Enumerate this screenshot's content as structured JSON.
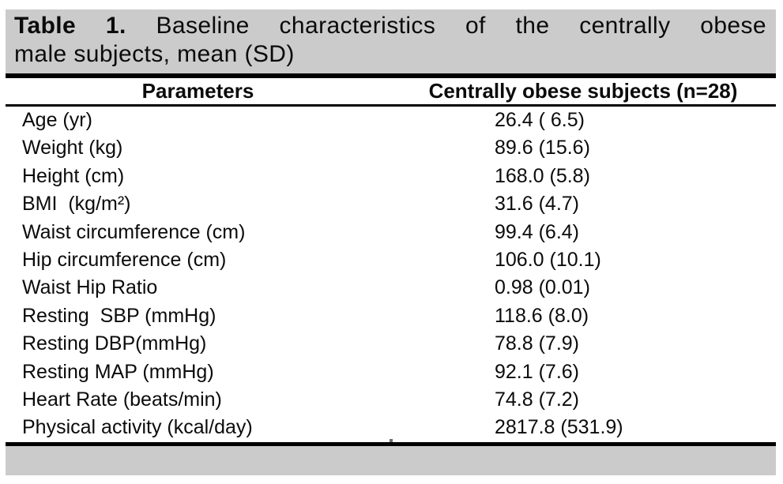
{
  "table": {
    "caption": {
      "label": "Table 1.",
      "text_line1": "Baseline characteristics  of the centrally obese",
      "text_line2": "male subjects, mean (SD)"
    },
    "header": {
      "parameters": "Parameters",
      "subjects": "Centrally obese subjects (n=28)"
    },
    "rows": [
      {
        "parameter": "Age (yr)",
        "value": "26.4 ( 6.5)"
      },
      {
        "parameter": "Weight (kg)",
        "value": "89.6 (15.6)"
      },
      {
        "parameter": "Height (cm)",
        "value": "168.0 (5.8)"
      },
      {
        "parameter": "BMI  (kg/m²)",
        "value": "31.6 (4.7)"
      },
      {
        "parameter": "Waist circumference (cm)",
        "value": "99.4 (6.4)"
      },
      {
        "parameter": "Hip circumference (cm)",
        "value": "106.0 (10.1)"
      },
      {
        "parameter": "Waist Hip Ratio",
        "value": "0.98 (0.01)"
      },
      {
        "parameter": "Resting  SBP (mmHg)",
        "value": "118.6 (8.0)"
      },
      {
        "parameter": "Resting DBP(mmHg)",
        "value": "78.8 (7.9)"
      },
      {
        "parameter": "Resting MAP (mmHg)",
        "value": "92.1 (7.6)"
      },
      {
        "parameter": "Heart Rate (beats/min)",
        "value": "74.8 (7.2)"
      },
      {
        "parameter": "Physical activity (kcal/day)",
        "value": "2817.8 (531.9)"
      }
    ],
    "colors": {
      "caption_background": "#cbcbcb",
      "footer_background": "#cbcbcb",
      "rule": "#000000",
      "text": "#0b0b0b"
    }
  }
}
